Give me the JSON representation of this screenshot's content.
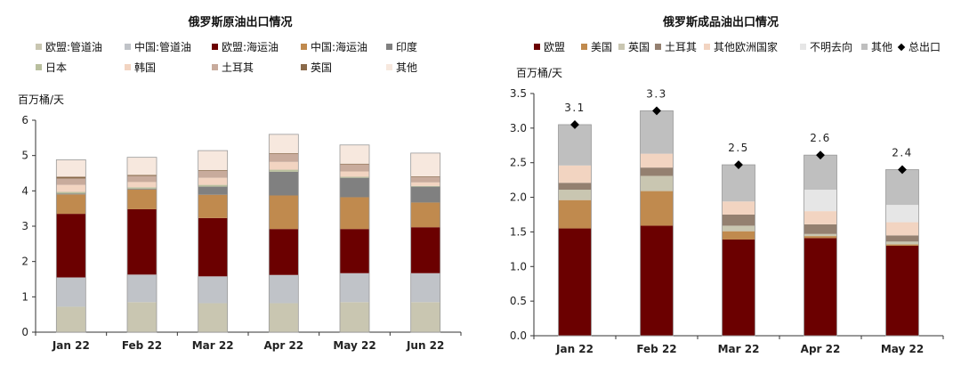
{
  "chart_data": [
    {
      "type": "bar",
      "stacked": true,
      "title": "俄罗斯原油出口情况",
      "ylabel": "百万桶/天",
      "ylim": [
        0,
        6
      ],
      "yticks": [
        "0",
        "1",
        "2",
        "3",
        "4",
        "5",
        "6"
      ],
      "categories": [
        "Jan 22",
        "Feb 22",
        "Mar 22",
        "Apr 22",
        "May 22",
        "Jun 22"
      ],
      "legend_position": "top",
      "series": [
        {
          "name": "欧盟:管道油",
          "color": "#c9c6b1",
          "values": [
            0.72,
            0.85,
            0.82,
            0.82,
            0.85,
            0.85
          ]
        },
        {
          "name": "中国:管道油",
          "color": "#c0c3c8",
          "values": [
            0.83,
            0.78,
            0.76,
            0.8,
            0.82,
            0.82
          ]
        },
        {
          "name": "欧盟:海运油",
          "color": "#6b0000",
          "values": [
            1.8,
            1.85,
            1.65,
            1.3,
            1.25,
            1.3
          ]
        },
        {
          "name": "中国:海运油",
          "color": "#c08a4e",
          "values": [
            0.55,
            0.56,
            0.66,
            0.95,
            0.9,
            0.7
          ]
        },
        {
          "name": "印度",
          "color": "#808080",
          "values": [
            0.02,
            0.02,
            0.23,
            0.67,
            0.55,
            0.45
          ]
        },
        {
          "name": "日本",
          "color": "#b9bf9e",
          "values": [
            0.05,
            0.04,
            0.05,
            0.06,
            0.03,
            0.02
          ]
        },
        {
          "name": "韩国",
          "color": "#f2d4c1",
          "values": [
            0.2,
            0.15,
            0.2,
            0.22,
            0.15,
            0.1
          ]
        },
        {
          "name": "土耳其",
          "color": "#c8ab9c",
          "values": [
            0.18,
            0.17,
            0.2,
            0.23,
            0.2,
            0.15
          ]
        },
        {
          "name": "英国",
          "color": "#8a6a4a",
          "values": [
            0.05,
            0.03,
            0.02,
            0.02,
            0.02,
            0.02
          ]
        },
        {
          "name": "其他",
          "color": "#f7e8de",
          "values": [
            0.48,
            0.5,
            0.55,
            0.53,
            0.53,
            0.66
          ]
        }
      ]
    },
    {
      "type": "bar",
      "stacked": true,
      "title": "俄罗斯成品油出口情况",
      "ylabel": "百万桶/天",
      "ylim": [
        0,
        3.5
      ],
      "yticks": [
        "0.0",
        "0.5",
        "1.0",
        "1.5",
        "2.0",
        "2.5",
        "3.0",
        "3.5"
      ],
      "categories": [
        "Jan 22",
        "Feb 22",
        "Mar 22",
        "Apr 22",
        "May 22"
      ],
      "legend_position": "top",
      "series": [
        {
          "name": "欧盟",
          "color": "#6b0000",
          "values": [
            1.55,
            1.59,
            1.39,
            1.41,
            1.3
          ]
        },
        {
          "name": "美国",
          "color": "#c08a4e",
          "values": [
            0.41,
            0.5,
            0.12,
            0.03,
            0.02
          ]
        },
        {
          "name": "英国",
          "color": "#c9c6b1",
          "values": [
            0.15,
            0.22,
            0.08,
            0.03,
            0.04
          ]
        },
        {
          "name": "土耳其",
          "color": "#948070",
          "values": [
            0.1,
            0.12,
            0.16,
            0.14,
            0.09
          ]
        },
        {
          "name": "其他欧洲国家",
          "color": "#f2d4c1",
          "values": [
            0.25,
            0.2,
            0.19,
            0.19,
            0.19
          ]
        },
        {
          "name": "不明去向",
          "color": "#e6e6e6",
          "values": [
            0.0,
            0.0,
            0.0,
            0.31,
            0.25
          ]
        },
        {
          "name": "其他",
          "color": "#bfbfbf",
          "values": [
            0.59,
            0.62,
            0.53,
            0.5,
            0.51
          ]
        }
      ],
      "total": {
        "name": "总出口",
        "values": [
          3.05,
          3.25,
          2.47,
          2.61,
          2.4
        ],
        "labels": [
          "3.1",
          "3.3",
          "2.5",
          "2.6",
          "2.4"
        ]
      }
    }
  ]
}
